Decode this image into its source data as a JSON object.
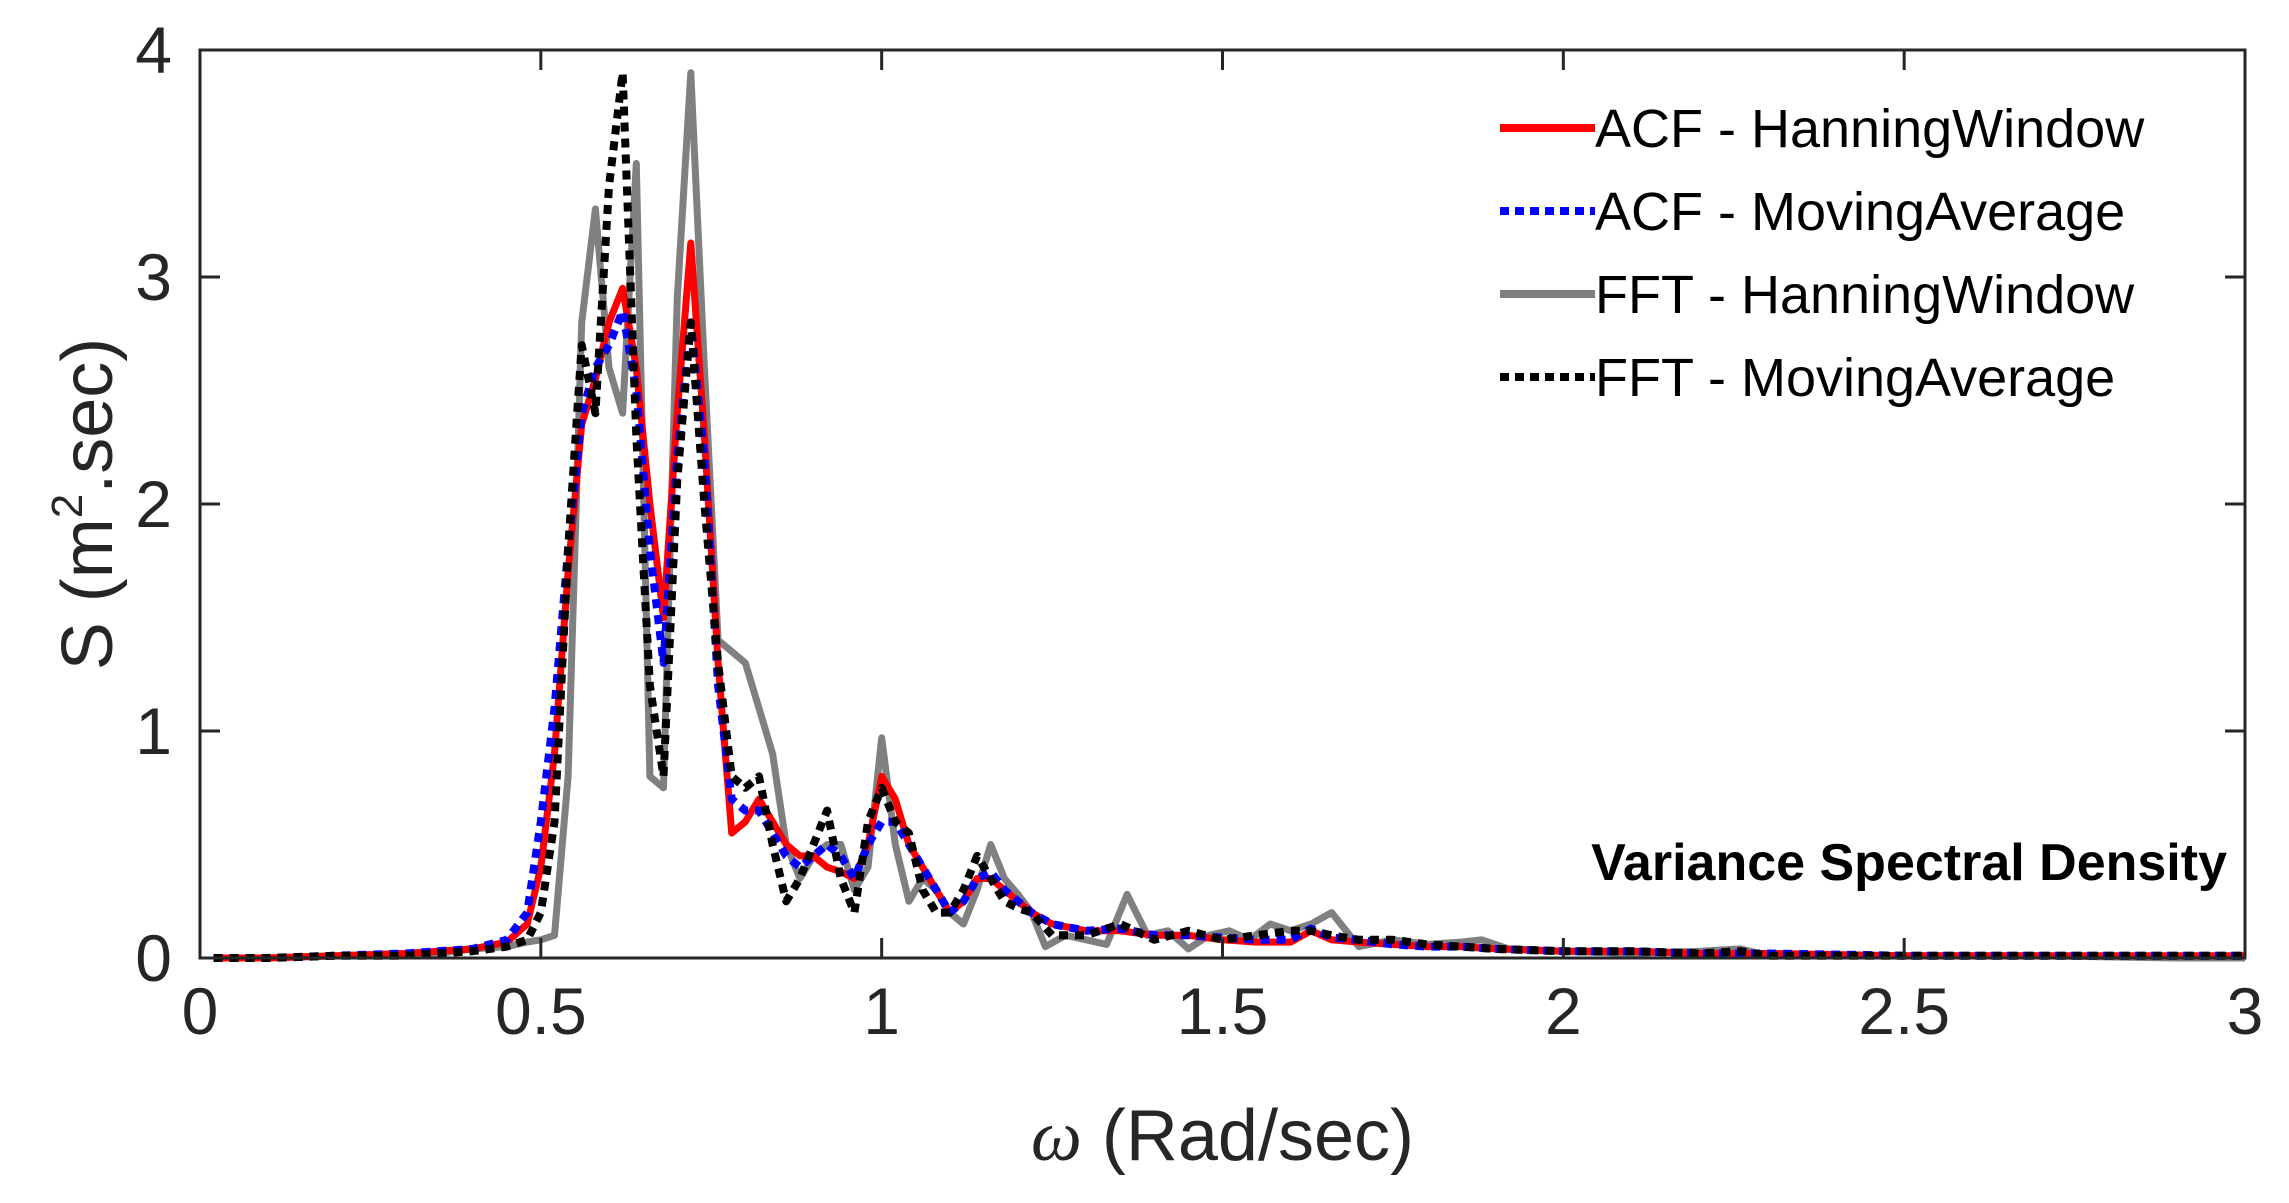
{
  "chart_data": {
    "type": "line",
    "title": "",
    "xlabel_symbol": "ω",
    "xlabel_rest": " (Rad/sec)",
    "ylabel_prefix": "S (m",
    "ylabel_sup": "2",
    "ylabel_suffix": ".sec)",
    "xlim": [
      0,
      3
    ],
    "ylim": [
      0,
      4
    ],
    "x_ticks": [
      0,
      0.5,
      1,
      1.5,
      2,
      2.5,
      3
    ],
    "x_tick_labels": [
      "0",
      "0.5",
      "1",
      "1.5",
      "2",
      "2.5",
      "3"
    ],
    "y_ticks": [
      0,
      1,
      2,
      3,
      4
    ],
    "y_tick_labels": [
      "0",
      "1",
      "2",
      "3",
      "4"
    ],
    "grid": false,
    "legend_position": "top-right",
    "annotation": "Variance Spectral Density",
    "series": [
      {
        "name": "ACF - HanningWindow",
        "color": "#ff0000",
        "style": "solid",
        "x": [
          0.02,
          0.1,
          0.2,
          0.3,
          0.35,
          0.4,
          0.45,
          0.48,
          0.5,
          0.52,
          0.54,
          0.56,
          0.58,
          0.6,
          0.62,
          0.64,
          0.66,
          0.68,
          0.7,
          0.72,
          0.74,
          0.76,
          0.78,
          0.8,
          0.82,
          0.84,
          0.86,
          0.88,
          0.9,
          0.92,
          0.94,
          0.96,
          0.98,
          1.0,
          1.02,
          1.04,
          1.06,
          1.08,
          1.1,
          1.12,
          1.14,
          1.16,
          1.18,
          1.2,
          1.22,
          1.25,
          1.3,
          1.35,
          1.4,
          1.45,
          1.5,
          1.55,
          1.6,
          1.63,
          1.66,
          1.7,
          1.75,
          1.8,
          1.85,
          1.9,
          2.0,
          2.1,
          2.2,
          2.3,
          2.5,
          2.7,
          2.9,
          3.0
        ],
        "y": [
          0.0,
          0.0,
          0.01,
          0.02,
          0.03,
          0.04,
          0.07,
          0.15,
          0.4,
          0.9,
          1.7,
          2.35,
          2.55,
          2.8,
          2.95,
          2.6,
          2.0,
          1.5,
          2.4,
          3.15,
          2.3,
          1.3,
          0.55,
          0.6,
          0.7,
          0.6,
          0.5,
          0.45,
          0.45,
          0.4,
          0.38,
          0.35,
          0.5,
          0.8,
          0.7,
          0.5,
          0.4,
          0.3,
          0.2,
          0.25,
          0.35,
          0.35,
          0.3,
          0.25,
          0.2,
          0.15,
          0.12,
          0.12,
          0.1,
          0.1,
          0.08,
          0.07,
          0.07,
          0.12,
          0.08,
          0.07,
          0.06,
          0.05,
          0.05,
          0.04,
          0.03,
          0.03,
          0.02,
          0.02,
          0.01,
          0.01,
          0.01,
          0.01
        ]
      },
      {
        "name": "ACF - MovingAverage",
        "color": "#0000ff",
        "style": "dotted",
        "x": [
          0.02,
          0.1,
          0.2,
          0.3,
          0.35,
          0.4,
          0.45,
          0.48,
          0.5,
          0.52,
          0.54,
          0.56,
          0.58,
          0.6,
          0.62,
          0.64,
          0.66,
          0.68,
          0.7,
          0.72,
          0.74,
          0.76,
          0.78,
          0.8,
          0.82,
          0.84,
          0.86,
          0.88,
          0.9,
          0.92,
          0.94,
          0.96,
          0.98,
          1.0,
          1.02,
          1.04,
          1.06,
          1.08,
          1.1,
          1.12,
          1.14,
          1.16,
          1.18,
          1.2,
          1.22,
          1.25,
          1.3,
          1.35,
          1.4,
          1.45,
          1.5,
          1.55,
          1.6,
          1.63,
          1.66,
          1.7,
          1.75,
          1.8,
          1.85,
          1.9,
          2.0,
          2.1,
          2.2,
          2.3,
          2.5,
          2.7,
          2.9,
          3.0
        ],
        "y": [
          0.0,
          0.0,
          0.01,
          0.02,
          0.03,
          0.04,
          0.08,
          0.2,
          0.6,
          1.1,
          1.8,
          2.4,
          2.6,
          2.7,
          2.85,
          2.5,
          1.8,
          1.3,
          2.2,
          2.8,
          2.2,
          1.2,
          0.7,
          0.65,
          0.65,
          0.55,
          0.45,
          0.4,
          0.45,
          0.5,
          0.45,
          0.35,
          0.5,
          0.6,
          0.6,
          0.5,
          0.4,
          0.3,
          0.2,
          0.25,
          0.35,
          0.38,
          0.3,
          0.25,
          0.2,
          0.15,
          0.12,
          0.13,
          0.1,
          0.1,
          0.09,
          0.08,
          0.08,
          0.13,
          0.09,
          0.08,
          0.06,
          0.05,
          0.05,
          0.04,
          0.03,
          0.03,
          0.02,
          0.02,
          0.01,
          0.01,
          0.01,
          0.01
        ]
      },
      {
        "name": "FFT - HanningWindow",
        "color": "#808080",
        "style": "solid",
        "x": [
          0.02,
          0.1,
          0.2,
          0.3,
          0.35,
          0.4,
          0.45,
          0.48,
          0.5,
          0.52,
          0.54,
          0.56,
          0.58,
          0.6,
          0.62,
          0.64,
          0.66,
          0.68,
          0.7,
          0.72,
          0.74,
          0.76,
          0.78,
          0.8,
          0.82,
          0.84,
          0.86,
          0.88,
          0.9,
          0.92,
          0.94,
          0.96,
          0.98,
          1.0,
          1.02,
          1.04,
          1.06,
          1.08,
          1.1,
          1.12,
          1.14,
          1.16,
          1.18,
          1.2,
          1.22,
          1.24,
          1.27,
          1.3,
          1.33,
          1.36,
          1.39,
          1.42,
          1.45,
          1.48,
          1.51,
          1.54,
          1.57,
          1.6,
          1.63,
          1.66,
          1.7,
          1.75,
          1.8,
          1.85,
          1.88,
          1.92,
          2.0,
          2.1,
          2.2,
          2.26,
          2.3,
          2.5,
          2.7,
          2.9,
          3.0
        ],
        "y": [
          0.0,
          0.0,
          0.01,
          0.01,
          0.02,
          0.04,
          0.05,
          0.07,
          0.08,
          0.1,
          0.8,
          2.8,
          3.3,
          2.6,
          2.4,
          3.5,
          0.8,
          0.75,
          2.9,
          3.9,
          2.6,
          1.4,
          1.35,
          1.3,
          1.1,
          0.9,
          0.5,
          0.35,
          0.45,
          0.5,
          0.5,
          0.3,
          0.4,
          0.97,
          0.5,
          0.25,
          0.35,
          0.3,
          0.2,
          0.15,
          0.3,
          0.5,
          0.35,
          0.28,
          0.2,
          0.05,
          0.1,
          0.08,
          0.06,
          0.28,
          0.1,
          0.12,
          0.04,
          0.1,
          0.12,
          0.08,
          0.15,
          0.12,
          0.15,
          0.2,
          0.05,
          0.08,
          0.06,
          0.07,
          0.08,
          0.04,
          0.03,
          0.02,
          0.03,
          0.04,
          0.01,
          0.01,
          0.01,
          0.0,
          0.0
        ]
      },
      {
        "name": "FFT - MovingAverage",
        "color": "#000000",
        "style": "dotted",
        "x": [
          0.02,
          0.1,
          0.2,
          0.3,
          0.35,
          0.4,
          0.45,
          0.48,
          0.5,
          0.52,
          0.54,
          0.56,
          0.58,
          0.6,
          0.62,
          0.64,
          0.66,
          0.68,
          0.7,
          0.72,
          0.74,
          0.76,
          0.78,
          0.8,
          0.82,
          0.84,
          0.86,
          0.88,
          0.9,
          0.92,
          0.94,
          0.96,
          0.98,
          1.0,
          1.02,
          1.04,
          1.06,
          1.08,
          1.1,
          1.12,
          1.14,
          1.16,
          1.18,
          1.2,
          1.22,
          1.25,
          1.3,
          1.35,
          1.4,
          1.45,
          1.5,
          1.55,
          1.6,
          1.63,
          1.66,
          1.7,
          1.75,
          1.8,
          1.85,
          1.9,
          2.0,
          2.1,
          2.2,
          2.26,
          2.3,
          2.5,
          2.7,
          2.9,
          3.0
        ],
        "y": [
          0.0,
          0.0,
          0.01,
          0.01,
          0.02,
          0.03,
          0.05,
          0.08,
          0.2,
          0.6,
          1.8,
          2.7,
          2.4,
          3.4,
          3.9,
          2.3,
          1.2,
          0.8,
          2.1,
          2.8,
          2.0,
          1.3,
          0.8,
          0.75,
          0.8,
          0.5,
          0.25,
          0.35,
          0.5,
          0.65,
          0.35,
          0.2,
          0.6,
          0.75,
          0.6,
          0.55,
          0.3,
          0.2,
          0.2,
          0.3,
          0.45,
          0.35,
          0.25,
          0.22,
          0.2,
          0.1,
          0.1,
          0.15,
          0.08,
          0.12,
          0.08,
          0.1,
          0.12,
          0.12,
          0.1,
          0.08,
          0.08,
          0.06,
          0.05,
          0.04,
          0.03,
          0.03,
          0.02,
          0.03,
          0.01,
          0.01,
          0.01,
          0.01,
          0.01
        ]
      }
    ]
  }
}
